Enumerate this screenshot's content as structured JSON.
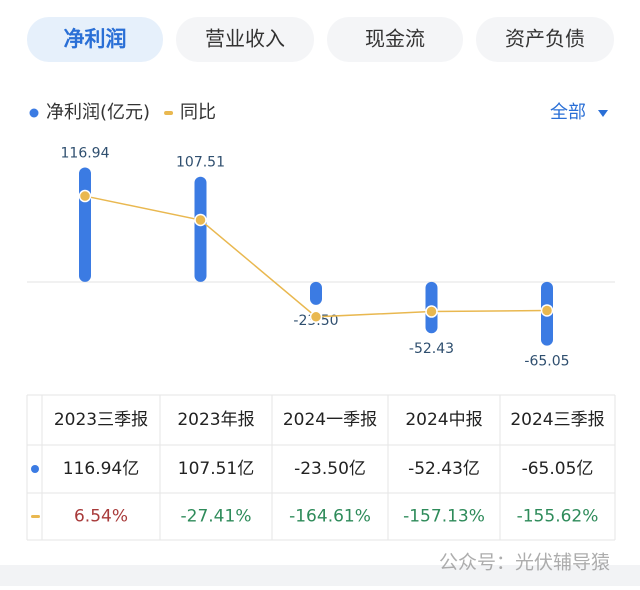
{
  "tabs": [
    "净利润",
    "营业收入",
    "现金流",
    "资产负债"
  ],
  "filter": "全部",
  "chart_data": {
    "type": "bar",
    "categories": [
      "2023三季报",
      "2023年报",
      "2024一季报",
      "2024中报",
      "2024三季报"
    ],
    "series": [
      {
        "name": "净利润(亿元)",
        "type": "bar",
        "color": "#3b7be3",
        "values": [
          116.94,
          107.51,
          -23.5,
          -52.43,
          -65.05
        ],
        "value_labels": [
          "116.94",
          "107.51",
          "-23.50",
          "-52.43",
          "-65.05"
        ]
      },
      {
        "name": "同比",
        "type": "line",
        "axis": "y2",
        "color": "#e9b850",
        "values": [
          6.54,
          -27.41,
          -164.61,
          -157.13,
          -155.62
        ]
      }
    ],
    "ylim": [
      -90,
      145
    ],
    "y2lim": [
      -240,
      86
    ]
  },
  "table": {
    "rows": [
      [
        "116.94亿",
        "107.51亿",
        "-23.50亿",
        "-52.43亿",
        "-65.05亿"
      ],
      [
        "6.54%",
        "-27.41%",
        "-164.61%",
        "-157.13%",
        "-155.62%"
      ]
    ]
  },
  "watermark": "公众号：光伏辅导猿"
}
